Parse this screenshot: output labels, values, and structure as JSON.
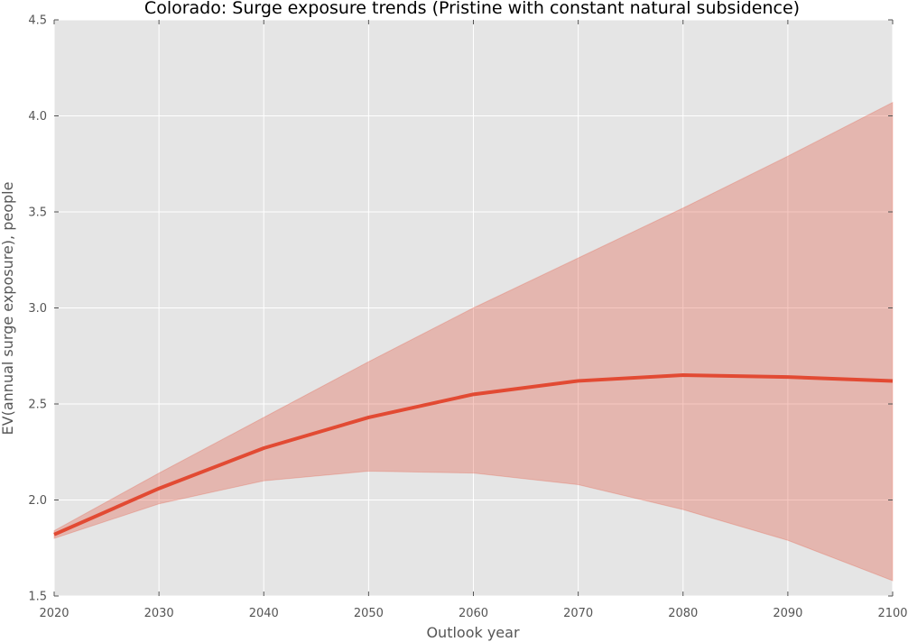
{
  "chart_data": {
    "type": "line",
    "title": "Colorado: Surge exposure trends (Pristine with constant natural subsidence)",
    "xlabel": "Outlook year",
    "ylabel": "EV(annual surge exposure), people",
    "xlim": [
      2020,
      2100
    ],
    "ylim": [
      1.5,
      4.5
    ],
    "xticks": [
      "2020",
      "2030",
      "2040",
      "2050",
      "2060",
      "2070",
      "2080",
      "2090",
      "2100"
    ],
    "yticks": [
      "1.5",
      "2.0",
      "2.5",
      "3.0",
      "3.5",
      "4.0",
      "4.5"
    ],
    "grid": true,
    "x": [
      2020,
      2030,
      2040,
      2050,
      2060,
      2070,
      2080,
      2090,
      2100
    ],
    "series": [
      {
        "values": [
          1.82,
          2.06,
          2.27,
          2.43,
          2.55,
          2.62,
          2.65,
          2.64,
          2.62
        ],
        "lower": [
          1.8,
          1.98,
          2.1,
          2.15,
          2.14,
          2.08,
          1.95,
          1.79,
          1.58
        ],
        "upper": [
          1.84,
          2.14,
          2.43,
          2.72,
          3.0,
          3.26,
          3.52,
          3.79,
          4.07
        ]
      }
    ],
    "colors": {
      "line": "#e24a33",
      "band": "#e24a33",
      "plot_background": "#e5e5e5",
      "grid": "#ffffff"
    }
  }
}
